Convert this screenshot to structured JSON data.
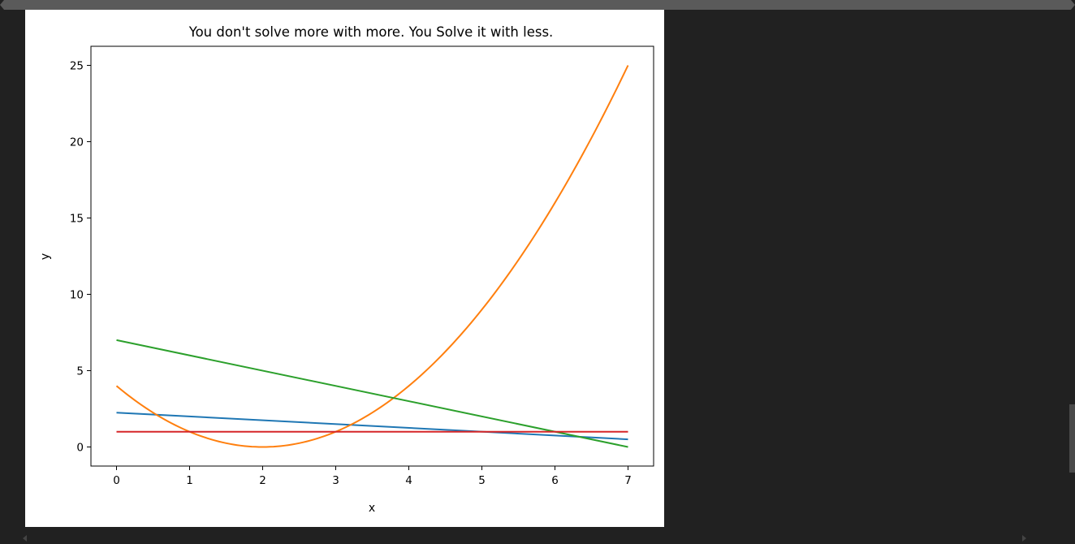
{
  "chart_data": {
    "type": "line",
    "title": "You don't solve more with more. You Solve it with less.",
    "xlabel": "x",
    "ylabel": "y",
    "xlim": [
      -0.35,
      7.35
    ],
    "ylim": [
      -1.25,
      26.25
    ],
    "xticks": [
      "0",
      "1",
      "2",
      "3",
      "4",
      "5",
      "6",
      "7"
    ],
    "yticks": [
      "0",
      "5",
      "10",
      "15",
      "20",
      "25"
    ],
    "grid": false,
    "legend": "none",
    "series": [
      {
        "color": "#1f77b4",
        "kind": "linear",
        "x": [
          0,
          7
        ],
        "y": [
          2.25,
          0.5
        ]
      },
      {
        "color": "#ff7f0e",
        "kind": "quadratic",
        "x": [
          0,
          1,
          2,
          3,
          4,
          5,
          6,
          7
        ],
        "y": [
          4,
          1,
          0,
          1,
          4,
          9,
          16,
          25
        ]
      },
      {
        "color": "#2ca02c",
        "kind": "linear",
        "x": [
          0,
          7
        ],
        "y": [
          7,
          0
        ]
      },
      {
        "color": "#d62728",
        "kind": "linear",
        "x": [
          0,
          7
        ],
        "y": [
          1,
          1
        ]
      }
    ]
  }
}
